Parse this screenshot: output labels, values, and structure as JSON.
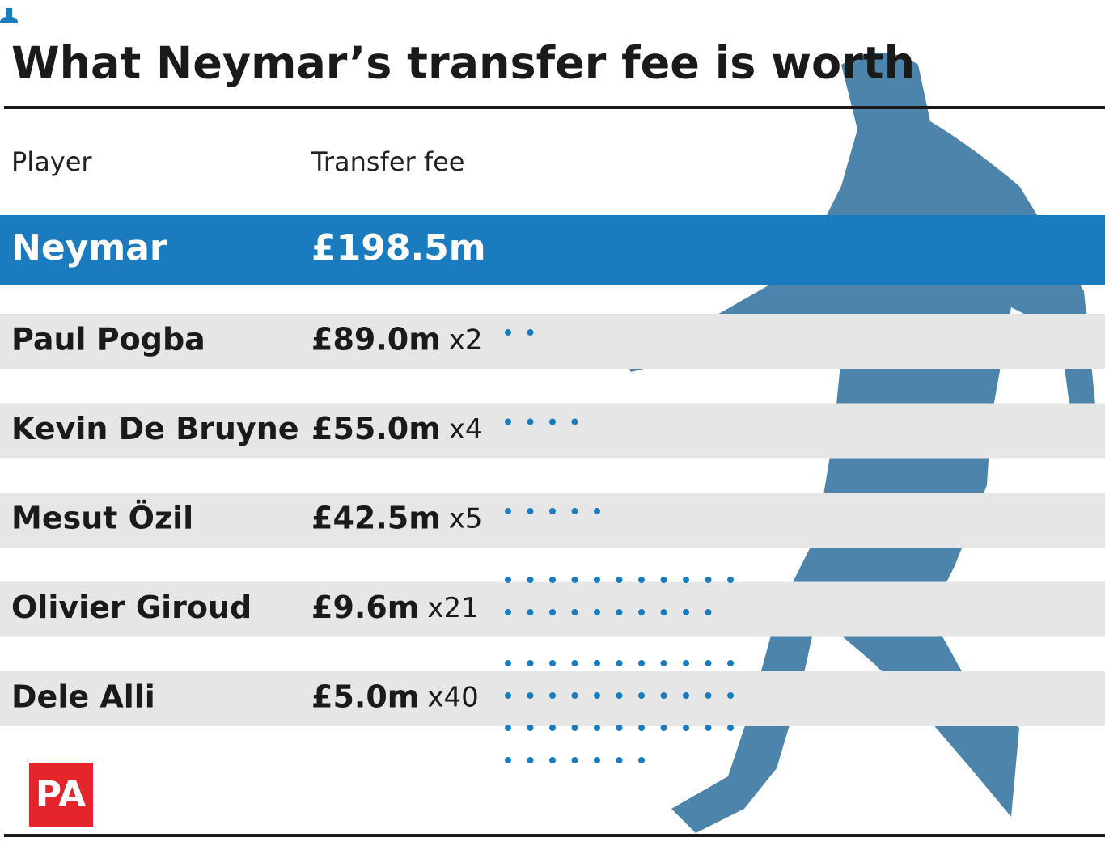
{
  "title": "What Neymar’s transfer fee is worth",
  "header": {
    "player": "Player",
    "fee": "Transfer fee"
  },
  "highlight": {
    "player": "Neymar",
    "fee": "£198.5m"
  },
  "rows": [
    {
      "player": "Paul Pogba",
      "fee": "£89.0m",
      "multiplier": {
        "value": 2,
        "label": "x2"
      }
    },
    {
      "player": "Kevin De Bruyne",
      "fee": "£55.0m",
      "multiplier": {
        "value": 4,
        "label": "x4"
      }
    },
    {
      "player": "Mesut Özil",
      "fee": "£42.5m",
      "multiplier": {
        "value": 5,
        "label": "x5"
      }
    },
    {
      "player": "Olivier Giroud",
      "fee": "£9.6m",
      "multiplier": {
        "value": 21,
        "label": "x21"
      }
    },
    {
      "player": "Dele Alli",
      "fee": "£5.0m",
      "multiplier": {
        "value": 40,
        "label": "x40"
      }
    }
  ],
  "logo": "PA"
}
